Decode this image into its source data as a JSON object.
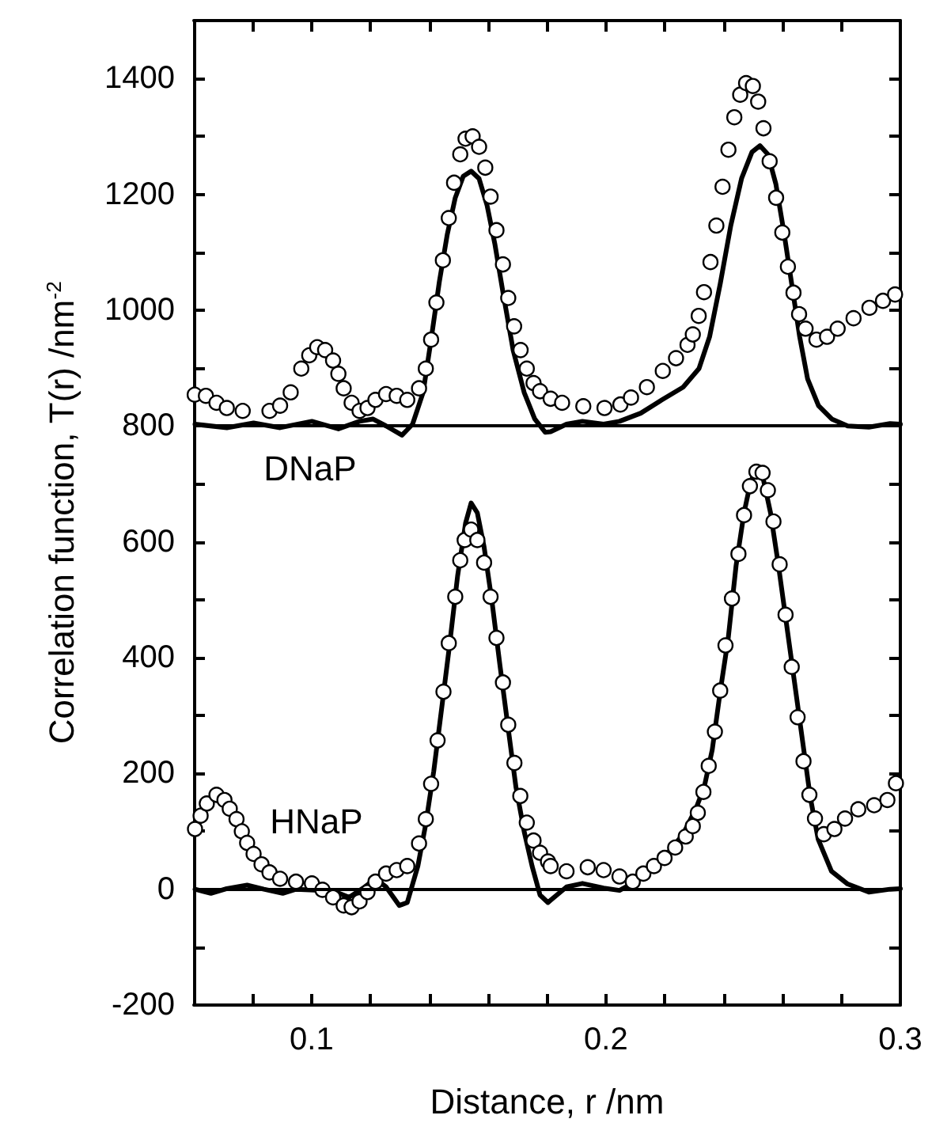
{
  "chart_data": {
    "type": "scatter",
    "xlabel": "Distance, r /nm",
    "ylabel": "Correlation function, T(r) /nm$^{-2}$",
    "xlim": [
      0.06,
      0.3
    ],
    "xticks": [
      {
        "value": 0.08,
        "label": null
      },
      0.1,
      {
        "value": 0.12,
        "label": null
      },
      {
        "value": 0.14,
        "label": null
      },
      {
        "value": 0.16,
        "label": null
      },
      {
        "value": 0.18,
        "label": null
      },
      0.2,
      {
        "value": 0.22,
        "label": null
      },
      {
        "value": 0.24,
        "label": null
      },
      {
        "value": 0.26,
        "label": null
      },
      {
        "value": 0.28,
        "label": null
      },
      0.3
    ],
    "ylim": [
      -200,
      1500
    ],
    "yticks": [
      -200,
      {
        "value": -100,
        "label": null
      },
      0,
      {
        "value": 100,
        "label": null
      },
      200,
      {
        "value": 300,
        "label": null
      },
      400,
      {
        "value": 500,
        "label": null
      },
      600,
      {
        "value": 700,
        "label": null
      },
      800,
      {
        "value": 900,
        "label": null
      },
      1000,
      {
        "value": 1100,
        "label": null
      },
      1200,
      {
        "value": 1300,
        "label": null
      },
      1400
    ],
    "grid": false,
    "ref_lines": [
      {
        "axis": "y",
        "value": 0,
        "color": "#000000"
      },
      {
        "axis": "y",
        "value": 800,
        "color": "#000000"
      }
    ],
    "annotations": [
      "DNaP",
      "HNaP"
    ],
    "series": [
      {
        "marker": "circle",
        "color": "#000000",
        "x": [
          0.0603,
          0.0641,
          0.0677,
          0.0712,
          0.0766,
          0.0857,
          0.0893,
          0.0929,
          0.0965,
          0.0992,
          0.1019,
          0.1046,
          0.1073,
          0.1091,
          0.1109,
          0.1136,
          0.1163,
          0.119,
          0.1217,
          0.1253,
          0.1289,
          0.1325,
          0.1365,
          0.1388,
          0.1406,
          0.1424,
          0.1446,
          0.1466,
          0.1484,
          0.1505,
          0.1523,
          0.1547,
          0.1569,
          0.159,
          0.1608,
          0.1628,
          0.165,
          0.1668,
          0.1688,
          0.171,
          0.1731,
          0.1754,
          0.1776,
          0.1812,
          0.1851,
          0.1923,
          0.1995,
          0.2049,
          0.2085,
          0.2139,
          0.2193,
          0.2238,
          0.2277,
          0.2295,
          0.2315,
          0.2333,
          0.2355,
          0.2375,
          0.2396,
          0.2416,
          0.2436,
          0.2456,
          0.2476,
          0.2499,
          0.2517,
          0.2535,
          0.2556,
          0.2578,
          0.2599,
          0.2618,
          0.2637,
          0.2656,
          0.2678,
          0.2715,
          0.2751,
          0.2787,
          0.2841,
          0.2895,
          0.2941,
          0.2982
        ],
        "values": [
          854,
          852,
          840,
          831,
          826,
          826,
          835,
          858,
          899,
          922,
          936,
          931,
          913,
          890,
          865,
          840,
          826,
          831,
          845,
          855,
          852,
          845,
          865,
          899,
          949,
          1013,
          1086,
          1159,
          1220,
          1269,
          1296,
          1300,
          1282,
          1246,
          1196,
          1138,
          1079,
          1021,
          972,
          931,
          899,
          874,
          860,
          847,
          840,
          834,
          831,
          837,
          849,
          867,
          895,
          917,
          940,
          958,
          990,
          1031,
          1083,
          1146,
          1213,
          1277,
          1333,
          1372,
          1392,
          1387,
          1360,
          1314,
          1257,
          1194,
          1134,
          1075,
          1030,
          993,
          968,
          949,
          954,
          968,
          986,
          1004,
          1016,
          1027
        ]
      },
      {
        "type": "line",
        "marker": "none",
        "color": "#000000",
        "x": [
          0.0604,
          0.0712,
          0.0803,
          0.0893,
          0.1001,
          0.1091,
          0.1163,
          0.1208,
          0.1253,
          0.1307,
          0.1343,
          0.1379,
          0.1406,
          0.1434,
          0.1461,
          0.1488,
          0.1515,
          0.1542,
          0.1569,
          0.1596,
          0.1623,
          0.165,
          0.1685,
          0.1722,
          0.1758,
          0.1794,
          0.1812,
          0.1866,
          0.192,
          0.1992,
          0.2046,
          0.2118,
          0.219,
          0.2262,
          0.2316,
          0.2352,
          0.2388,
          0.2424,
          0.2461,
          0.2496,
          0.2523,
          0.255,
          0.2577,
          0.2604,
          0.2631,
          0.2658,
          0.2685,
          0.2722,
          0.2767,
          0.2821,
          0.2893,
          0.2965,
          0.3
        ],
        "values": [
          803,
          797,
          805,
          797,
          808,
          795,
          808,
          812,
          800,
          784,
          803,
          858,
          949,
          1049,
          1131,
          1194,
          1231,
          1240,
          1227,
          1181,
          1113,
          1031,
          930,
          858,
          812,
          789,
          790,
          803,
          808,
          803,
          808,
          822,
          845,
          867,
          899,
          954,
          1045,
          1146,
          1228,
          1273,
          1284,
          1269,
          1218,
          1136,
          1045,
          954,
          881,
          835,
          812,
          800,
          798,
          804,
          803
        ]
      },
      {
        "marker": "circle",
        "color": "#000000",
        "x": [
          0.0604,
          0.0623,
          0.0644,
          0.0677,
          0.0704,
          0.0722,
          0.0745,
          0.0763,
          0.0781,
          0.0803,
          0.083,
          0.0857,
          0.0893,
          0.0947,
          0.1001,
          0.1037,
          0.1073,
          0.1109,
          0.1136,
          0.1163,
          0.119,
          0.1217,
          0.1253,
          0.1289,
          0.1325,
          0.1365,
          0.1388,
          0.1406,
          0.1428,
          0.1448,
          0.1466,
          0.1488,
          0.1505,
          0.152,
          0.1542,
          0.1563,
          0.1586,
          0.1608,
          0.1628,
          0.165,
          0.1668,
          0.1689,
          0.1709,
          0.1731,
          0.1754,
          0.1776,
          0.1803,
          0.1812,
          0.1866,
          0.1938,
          0.1992,
          0.2046,
          0.2091,
          0.2127,
          0.2163,
          0.2199,
          0.2235,
          0.2271,
          0.2295,
          0.2312,
          0.2331,
          0.2349,
          0.237,
          0.2388,
          0.2406,
          0.2428,
          0.245,
          0.2469,
          0.2489,
          0.2511,
          0.2532,
          0.255,
          0.2569,
          0.259,
          0.261,
          0.2631,
          0.2651,
          0.2671,
          0.2691,
          0.271,
          0.274,
          0.2776,
          0.2812,
          0.2857,
          0.2911,
          0.2956,
          0.2985
        ],
        "values": [
          104,
          127,
          148,
          163,
          154,
          139,
          121,
          100,
          80,
          61,
          43,
          29,
          18,
          13,
          10,
          -1,
          -14,
          -28,
          -31,
          -21,
          -5,
          13,
          27,
          33,
          40,
          79,
          121,
          182,
          257,
          341,
          425,
          505,
          568,
          603,
          621,
          603,
          564,
          505,
          434,
          357,
          284,
          218,
          161,
          115,
          84,
          63,
          48,
          40,
          31,
          38,
          33,
          22,
          13,
          27,
          40,
          54,
          72,
          91,
          109,
          132,
          168,
          213,
          272,
          343,
          421,
          502,
          579,
          646,
          696,
          721,
          719,
          689,
          635,
          561,
          474,
          384,
          297,
          221,
          163,
          122,
          95,
          104,
          122,
          138,
          145,
          154,
          183
        ]
      },
      {
        "type": "line",
        "marker": "none",
        "color": "#000000",
        "x": [
          0.0604,
          0.0658,
          0.0712,
          0.0781,
          0.0838,
          0.0902,
          0.0947,
          0.1073,
          0.1127,
          0.1181,
          0.1217,
          0.1253,
          0.1298,
          0.1325,
          0.1361,
          0.1388,
          0.1415,
          0.1442,
          0.1469,
          0.1496,
          0.1523,
          0.1542,
          0.1563,
          0.1586,
          0.1613,
          0.164,
          0.1668,
          0.1694,
          0.1722,
          0.1749,
          0.1776,
          0.1803,
          0.1812,
          0.1866,
          0.192,
          0.1992,
          0.2046,
          0.21,
          0.2154,
          0.2208,
          0.2262,
          0.2307,
          0.2334,
          0.2361,
          0.2388,
          0.2415,
          0.2442,
          0.2469,
          0.2492,
          0.2514,
          0.2532,
          0.2559,
          0.2586,
          0.2613,
          0.264,
          0.2667,
          0.2694,
          0.2721,
          0.2766,
          0.2821,
          0.2893,
          0.2965,
          0.3
        ],
        "values": [
          0,
          -7,
          1,
          7,
          0,
          -7,
          0,
          -3,
          -14,
          4,
          18,
          4,
          -28,
          -23,
          40,
          113,
          204,
          313,
          423,
          541,
          632,
          667,
          650,
          591,
          496,
          386,
          277,
          177,
          100,
          40,
          -10,
          -23,
          -19,
          4,
          10,
          2,
          -2,
          13,
          36,
          61,
          95,
          141,
          177,
          241,
          341,
          432,
          559,
          650,
          705,
          728,
          714,
          650,
          559,
          459,
          359,
          259,
          159,
          86,
          31,
          9,
          -5,
          0,
          1
        ]
      }
    ]
  }
}
